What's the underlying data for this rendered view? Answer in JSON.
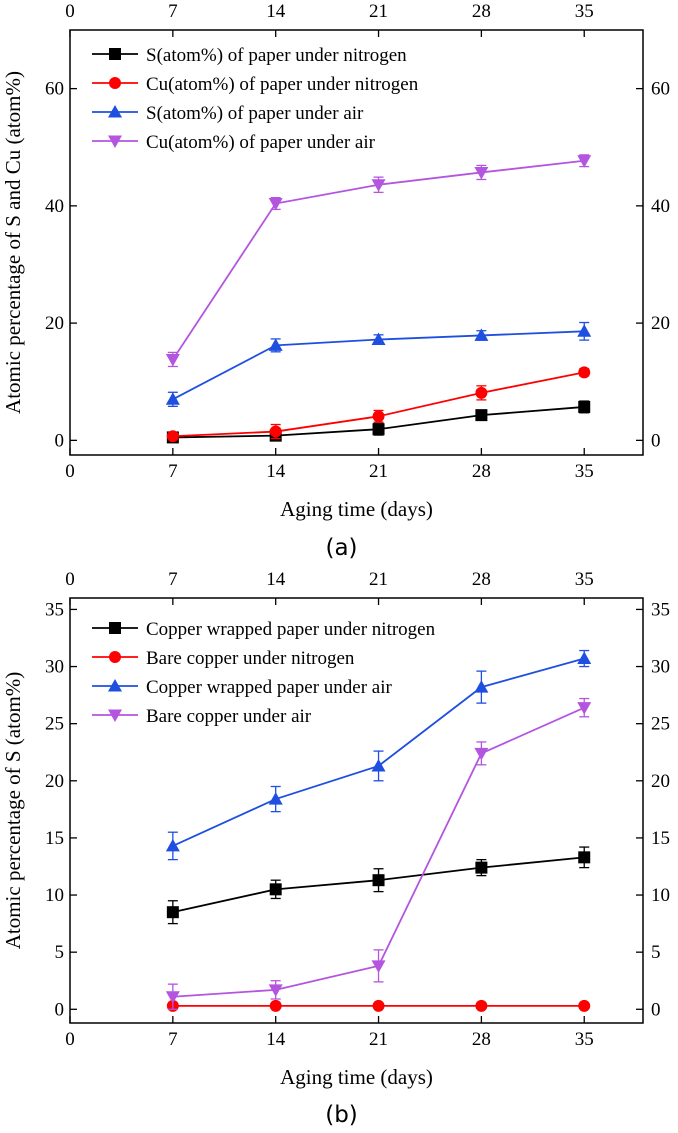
{
  "chart_data": [
    {
      "type": "line",
      "panel_label": "(a)",
      "xlabel": "Aging time (days)",
      "ylabel": "Atomic percentage of S and Cu (atom%)",
      "xlim": [
        0,
        39
      ],
      "ylim": [
        -2.5,
        70
      ],
      "xticks": [
        0,
        7,
        14,
        21,
        28,
        35
      ],
      "yticks": [
        0,
        20,
        40,
        60
      ],
      "mirror_axes": true,
      "legend_position": "top-left",
      "x": [
        7,
        14,
        21,
        28,
        35
      ],
      "series": [
        {
          "name": "S(atom%) of paper under nitrogen",
          "color": "#000000",
          "marker": "square",
          "values": [
            0.5,
            0.8,
            1.9,
            4.3,
            5.7
          ],
          "error": [
            0.3,
            0.4,
            1.0,
            0.8,
            1.0
          ]
        },
        {
          "name": "Cu(atom%) of paper under nitrogen",
          "color": "#ff0000",
          "marker": "circle",
          "values": [
            0.7,
            1.5,
            4.1,
            8.1,
            11.6
          ],
          "error": [
            0.3,
            1.2,
            1.0,
            1.2,
            0.6
          ]
        },
        {
          "name": "S(atom%) of paper under air",
          "color": "#1f4fe0",
          "marker": "triangle-up",
          "values": [
            7.0,
            16.2,
            17.2,
            17.9,
            18.6
          ],
          "error": [
            1.2,
            1.1,
            0.8,
            0.8,
            1.5
          ]
        },
        {
          "name": "Cu(atom%) of paper under air",
          "color": "#b455e0",
          "marker": "triangle-down",
          "values": [
            13.8,
            40.4,
            43.6,
            45.7,
            47.7
          ],
          "error": [
            1.2,
            1.0,
            1.3,
            1.2,
            1.0
          ]
        }
      ]
    },
    {
      "type": "line",
      "panel_label": "(b)",
      "xlabel": "Aging time (days)",
      "ylabel": "Atomic percentage of S (atom%)",
      "xlim": [
        0,
        39
      ],
      "ylim": [
        -1.2,
        36
      ],
      "xticks": [
        0,
        7,
        14,
        21,
        28,
        35
      ],
      "yticks": [
        0,
        5,
        10,
        15,
        20,
        25,
        30,
        35
      ],
      "mirror_axes": true,
      "legend_position": "top-left",
      "x": [
        7,
        14,
        21,
        28,
        35
      ],
      "series": [
        {
          "name": "Copper wrapped paper under nitrogen",
          "color": "#000000",
          "marker": "square",
          "values": [
            8.5,
            10.5,
            11.3,
            12.4,
            13.3
          ],
          "error": [
            1.0,
            0.8,
            1.0,
            0.7,
            0.9
          ]
        },
        {
          "name": "Bare copper under nitrogen",
          "color": "#ff0000",
          "marker": "circle",
          "values": [
            0.3,
            0.3,
            0.3,
            0.3,
            0.3
          ],
          "error": [
            0.1,
            0.1,
            0.1,
            0.1,
            0.1
          ]
        },
        {
          "name": "Copper wrapped paper under air",
          "color": "#1f4fe0",
          "marker": "triangle-up",
          "values": [
            14.3,
            18.4,
            21.3,
            28.2,
            30.7
          ],
          "error": [
            1.2,
            1.1,
            1.3,
            1.4,
            0.7
          ]
        },
        {
          "name": "Bare copper under air",
          "color": "#b455e0",
          "marker": "triangle-down",
          "values": [
            1.1,
            1.7,
            3.8,
            22.4,
            26.4
          ],
          "error": [
            1.1,
            0.8,
            1.4,
            1.0,
            0.8
          ]
        }
      ]
    }
  ]
}
